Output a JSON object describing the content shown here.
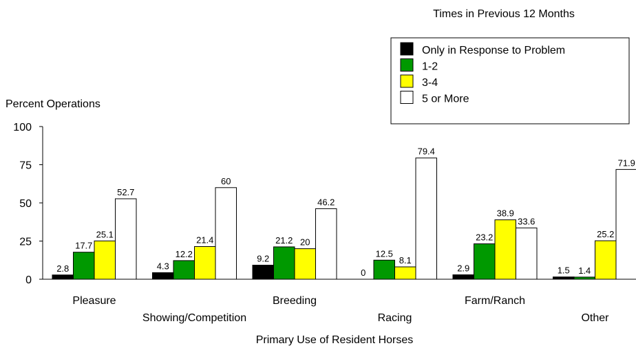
{
  "chart_data": {
    "type": "bar",
    "legend_title": "Times in Previous 12 Months",
    "ylabel": "Percent Operations",
    "xlabel": "Primary Use of Resident Horses",
    "ylim": [
      0,
      100
    ],
    "yticks": [
      "0",
      "25",
      "50",
      "75",
      "100"
    ],
    "legend_placement": "top-right",
    "grid": false,
    "categories": [
      "Pleasure",
      "Showing/Competition",
      "Breeding",
      "Racing",
      "Farm/Ranch",
      "Other"
    ],
    "series": [
      {
        "name": "Only in Response to Problem",
        "color": "#000000",
        "values": [
          2.8,
          4.3,
          9.2,
          0,
          2.9,
          1.5
        ],
        "labels": [
          "2.8",
          "4.3",
          "9.2",
          "0",
          "2.9",
          "1.5"
        ]
      },
      {
        "name": "1-2",
        "color": "#009900",
        "values": [
          17.7,
          12.2,
          21.2,
          12.5,
          23.2,
          1.4
        ],
        "labels": [
          "17.7",
          "12.2",
          "21.2",
          "12.5",
          "23.2",
          "1.4"
        ]
      },
      {
        "name": "3-4",
        "color": "#ffff00",
        "values": [
          25.1,
          21.4,
          20,
          8.1,
          38.9,
          25.2
        ],
        "labels": [
          "25.1",
          "21.4",
          "20",
          "8.1",
          "38.9",
          "25.2"
        ]
      },
      {
        "name": "5 or More",
        "color": "#ffffff",
        "values": [
          52.7,
          60,
          46.2,
          79.4,
          33.6,
          71.9
        ],
        "labels": [
          "52.7",
          "60",
          "46.2",
          "79.4",
          "33.6",
          "71.9"
        ]
      }
    ]
  }
}
